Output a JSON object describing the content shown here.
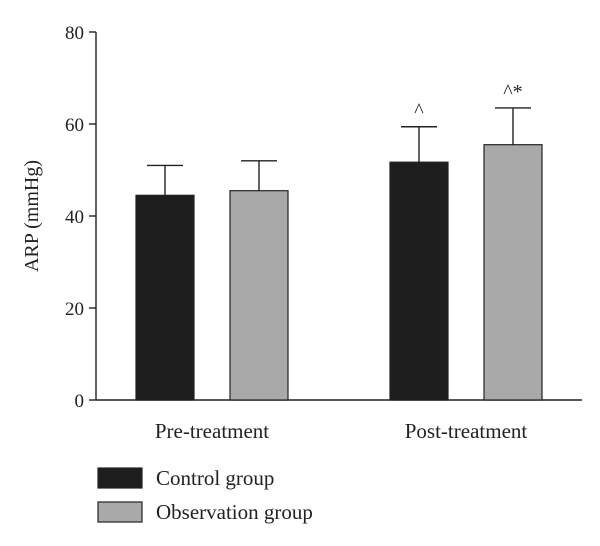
{
  "chart_data": {
    "type": "bar",
    "ylabel": "ARP (mmHg)",
    "ylim": [
      0,
      80
    ],
    "yticks": [
      0,
      20,
      40,
      60,
      80
    ],
    "categories": [
      "Pre-treatment",
      "Post-treatment"
    ],
    "series": [
      {
        "name": "Control group",
        "color": "#1e1e1e",
        "values": [
          44.5,
          51.7
        ],
        "errors": [
          6.5,
          7.7
        ],
        "annotations": [
          "",
          "^"
        ]
      },
      {
        "name": "Observation group",
        "color": "#a9a9a9",
        "values": [
          45.5,
          55.5
        ],
        "errors": [
          6.5,
          8.0
        ],
        "annotations": [
          "",
          "^*"
        ]
      }
    ],
    "legend_position": "bottom-left",
    "grid": false
  }
}
